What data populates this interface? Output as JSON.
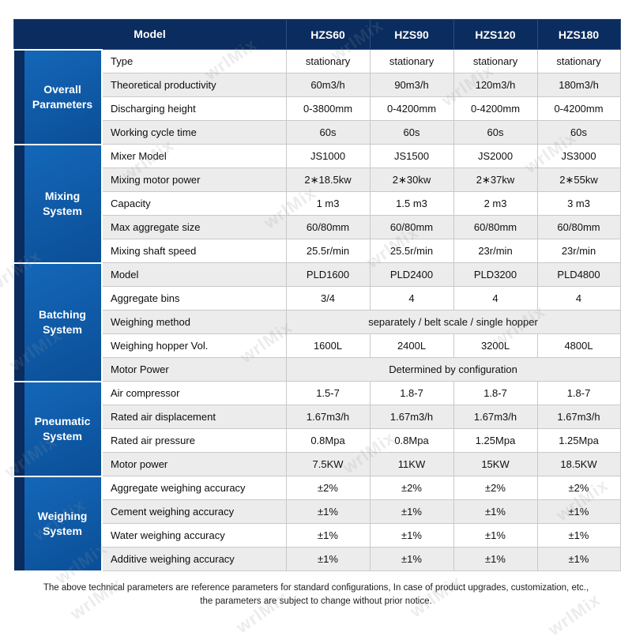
{
  "header": {
    "model_label": "Model",
    "columns": [
      "HZS60",
      "HZS90",
      "HZS120",
      "HZS180"
    ]
  },
  "groups": [
    {
      "name": "Overall Parameters",
      "rows": [
        {
          "label": "Type",
          "values": [
            "stationary",
            "stationary",
            "stationary",
            "stationary"
          ]
        },
        {
          "label": "Theoretical productivity",
          "values": [
            "60m3/h",
            "90m3/h",
            "120m3/h",
            "180m3/h"
          ]
        },
        {
          "label": "Discharging height",
          "values": [
            "0-3800mm",
            "0-4200mm",
            "0-4200mm",
            "0-4200mm"
          ]
        },
        {
          "label": "Working cycle time",
          "values": [
            "60s",
            "60s",
            "60s",
            "60s"
          ]
        }
      ]
    },
    {
      "name": "Mixing System",
      "rows": [
        {
          "label": "Mixer Model",
          "values": [
            "JS1000",
            "JS1500",
            "JS2000",
            "JS3000"
          ]
        },
        {
          "label": "Mixing motor power",
          "values": [
            "2∗18.5kw",
            "2∗30kw",
            "2∗37kw",
            "2∗55kw"
          ]
        },
        {
          "label": "Capacity",
          "values": [
            "1 m3",
            "1.5 m3",
            "2 m3",
            "3 m3"
          ]
        },
        {
          "label": "Max aggregate size",
          "values": [
            "60/80mm",
            "60/80mm",
            "60/80mm",
            "60/80mm"
          ]
        },
        {
          "label": "Mixing shaft speed",
          "values": [
            "25.5r/min",
            "25.5r/min",
            "23r/min",
            "23r/min"
          ]
        }
      ]
    },
    {
      "name": "Batching System",
      "rows": [
        {
          "label": "Model",
          "values": [
            "PLD1600",
            "PLD2400",
            "PLD3200",
            "PLD4800"
          ]
        },
        {
          "label": "Aggregate bins",
          "values": [
            "3/4",
            "4",
            "4",
            "4"
          ]
        },
        {
          "label": "Weighing method",
          "span": "separately  / belt scale / single hopper"
        },
        {
          "label": "Weighing hopper Vol.",
          "values": [
            "1600L",
            "2400L",
            "3200L",
            "4800L"
          ]
        },
        {
          "label": "Motor Power",
          "span": "Determined by configuration"
        }
      ]
    },
    {
      "name": "Pneumatic System",
      "rows": [
        {
          "label": "Air compressor",
          "values": [
            "1.5-7",
            "1.8-7",
            "1.8-7",
            "1.8-7"
          ]
        },
        {
          "label": "Rated air displacement",
          "values": [
            "1.67m3/h",
            "1.67m3/h",
            "1.67m3/h",
            "1.67m3/h"
          ]
        },
        {
          "label": "Rated air pressure",
          "values": [
            "0.8Mpa",
            "0.8Mpa",
            "1.25Mpa",
            "1.25Mpa"
          ]
        },
        {
          "label": "Motor power",
          "values": [
            "7.5KW",
            "11KW",
            "15KW",
            "18.5KW"
          ]
        }
      ]
    },
    {
      "name": "Weighing System",
      "rows": [
        {
          "label": "Aggregate weighing accuracy",
          "values": [
            "±2%",
            "±2%",
            "±2%",
            "±2%"
          ]
        },
        {
          "label": "Cement weighing accuracy",
          "values": [
            "±1%",
            "±1%",
            "±1%",
            "±1%"
          ]
        },
        {
          "label": "Water weighing accuracy",
          "values": [
            "±1%",
            "±1%",
            "±1%",
            "±1%"
          ]
        },
        {
          "label": "Additive weighing accuracy",
          "values": [
            "±1%",
            "±1%",
            "±1%",
            "±1%"
          ]
        }
      ]
    }
  ],
  "footer": {
    "line1": "The above technical parameters are reference parameters for standard configurations, In case of  product upgrades, customization, etc.,",
    "line2": "the parameters are subject to change without prior notice."
  },
  "watermark_text": "wrlMix",
  "colors": {
    "header_navy": "#0a2c5e",
    "group_blue": "#0f5cab",
    "stripe_gray": "#ececec",
    "border_gray": "#c9c9c9"
  }
}
